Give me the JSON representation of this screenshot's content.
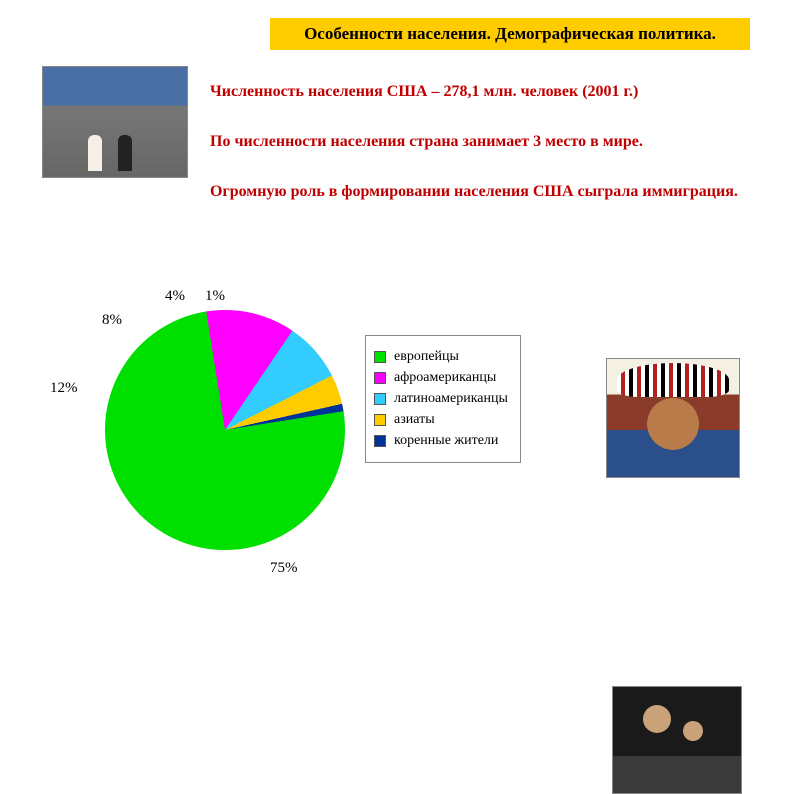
{
  "title_box": {
    "text": "Особенности населения. Демографическая политика.",
    "background": "#ffcc00",
    "color": "#000000"
  },
  "paragraphs": {
    "p1": "Численность населения США – 278,1 млн. человек (2001 г.)",
    "p2": "По численности населения страна занимает 3 место в мире.",
    "p3": "Огромную роль в формировании населения США сыграла иммиграция.",
    "color": "#c00000"
  },
  "pie": {
    "type": "pie",
    "background_color": "#ffffff",
    "slices": [
      {
        "label": "европейцы",
        "value": 75,
        "display": "75%",
        "color": "#00e000"
      },
      {
        "label": "афроамериканцы",
        "value": 12,
        "display": "12%",
        "color": "#ff00ff"
      },
      {
        "label": "латиноамериканцы",
        "value": 8,
        "display": "8%",
        "color": "#33ccff"
      },
      {
        "label": "азиаты",
        "value": 4,
        "display": "4%",
        "color": "#ffcc00"
      },
      {
        "label": "коренные жители",
        "value": 1,
        "display": "1%",
        "color": "#003399"
      }
    ],
    "label_fontsize": 15,
    "legend_fontsize": 14,
    "start_angle_deg": 81
  },
  "images": {
    "street": {
      "alt": "street-crowd-photo"
    },
    "chief": {
      "alt": "native-american-chief-photo"
    },
    "family": {
      "alt": "indigenous-family-photo"
    }
  }
}
